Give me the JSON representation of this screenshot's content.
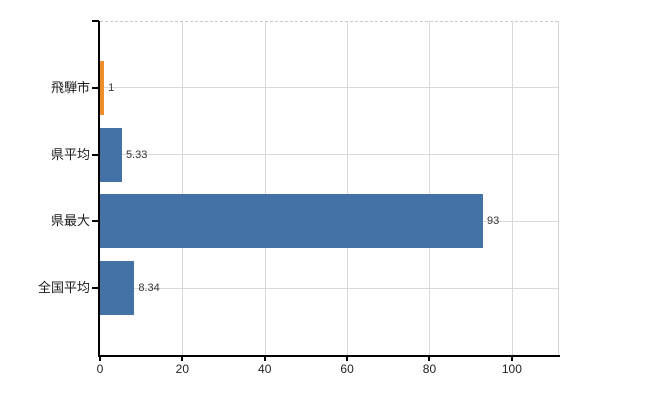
{
  "page": {
    "background": "#ffffff"
  },
  "colors": {
    "bar_primary": "#4472a7",
    "bar_highlight": "#ee8e2a",
    "axis": "#000000",
    "gridline": "#d9d9d9",
    "plot_top_border": "#c9c9c9",
    "plot_right_border": "#d4d4d4",
    "category_text": "#1a1a1a",
    "value_text": "#333333"
  },
  "chart_data": {
    "type": "bar",
    "orientation": "horizontal",
    "title": "",
    "xlabel": "",
    "ylabel": "",
    "categories": [
      "飛騨市",
      "県平均",
      "県最大",
      "全国平均"
    ],
    "category_ids": [
      "hida-city",
      "prefecture-average",
      "prefecture-max",
      "national-average"
    ],
    "values": [
      1,
      5.33,
      93,
      8.34
    ],
    "value_labels": [
      "1",
      "5.33",
      "93",
      "8.34"
    ],
    "bar_colors": [
      "#ee8e2a",
      "#4472a7",
      "#4472a7",
      "#4472a7"
    ],
    "x_ticks": [
      0,
      20,
      40,
      60,
      80,
      100
    ],
    "x_tick_labels": [
      "0",
      "20",
      "40",
      "60",
      "80",
      "100"
    ],
    "xlim": [
      0,
      111.2
    ],
    "grid": true,
    "legend": false
  }
}
